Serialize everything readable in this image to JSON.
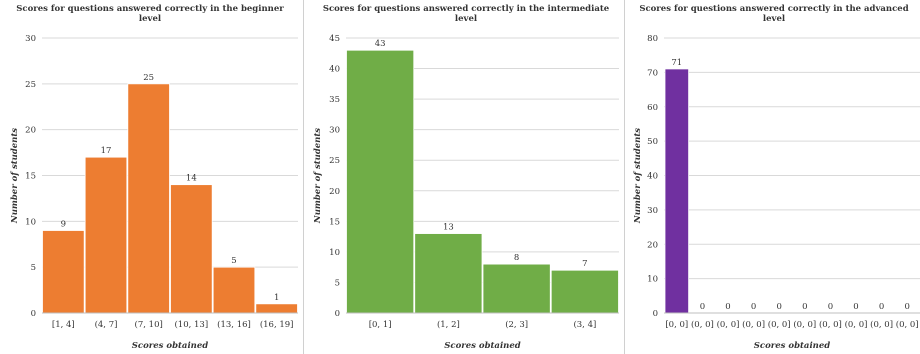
{
  "chart_data": [
    {
      "type": "bar",
      "title": "Scores for questions answered correctly in the beginner level",
      "xlabel": "Scores obtained",
      "ylabel": "Number of students",
      "categories": [
        "[1, 4]",
        "(4, 7]",
        "(7, 10]",
        "(10, 13]",
        "(13, 16]",
        "(16, 19]"
      ],
      "values": [
        9,
        17,
        25,
        14,
        5,
        1
      ],
      "ylim": [
        0,
        30
      ],
      "yticks": [
        0,
        5,
        10,
        15,
        20,
        25,
        30
      ],
      "color": "#ED7D31",
      "grid": true
    },
    {
      "type": "bar",
      "title": "Scores for questions answered correctly in the intermediate level",
      "xlabel": "Scores obtained",
      "ylabel": "Number of students",
      "categories": [
        "[0, 1]",
        "(1, 2]",
        "(2, 3]",
        "(3, 4]"
      ],
      "values": [
        43,
        13,
        8,
        7
      ],
      "ylim": [
        0,
        45
      ],
      "yticks": [
        0,
        5,
        10,
        15,
        20,
        25,
        30,
        35,
        40,
        45
      ],
      "color": "#70AD47",
      "grid": true
    },
    {
      "type": "bar",
      "title": "Scores for questions answered correctly in the advanced level",
      "xlabel": "Scores obtained",
      "ylabel": "Number of students",
      "categories": [
        "[0, 0]",
        "(0, 0]",
        "(0, 0]",
        "(0, 0]",
        "(0, 0]",
        "(0, 0]",
        "(0, 0]",
        "(0, 0]",
        "(0, 0]",
        "(0, 0]"
      ],
      "values": [
        71,
        0,
        0,
        0,
        0,
        0,
        0,
        0,
        0,
        0
      ],
      "ylim": [
        0,
        80
      ],
      "yticks": [
        0,
        10,
        20,
        30,
        40,
        50,
        60,
        70,
        80
      ],
      "color": "#7030A0",
      "grid": true
    }
  ]
}
